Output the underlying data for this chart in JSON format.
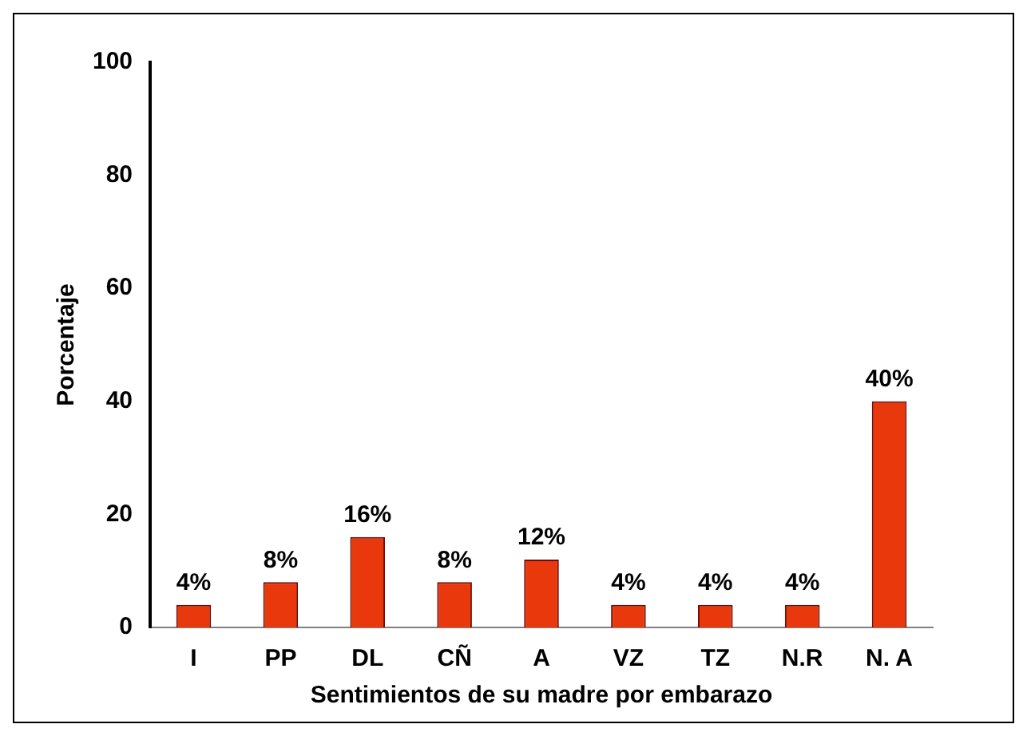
{
  "chart_data": {
    "type": "bar",
    "xlabel": "Sentimientos de su madre por embarazo",
    "ylabel": "Porcentaje",
    "categories": [
      "I",
      "PP",
      "DL",
      "CÑ",
      "A",
      "VZ",
      "TZ",
      "N.R",
      "N. A"
    ],
    "values": [
      4,
      8,
      16,
      8,
      12,
      4,
      4,
      4,
      40
    ],
    "value_labels": [
      "4%",
      "8%",
      "16%",
      "8%",
      "12%",
      "4%",
      "4%",
      "4%",
      "40%"
    ],
    "color": "#e8380c",
    "ylim": [
      0,
      100
    ],
    "yticks": [
      0,
      20,
      40,
      60,
      80,
      100
    ],
    "grid": false,
    "legend": false
  }
}
